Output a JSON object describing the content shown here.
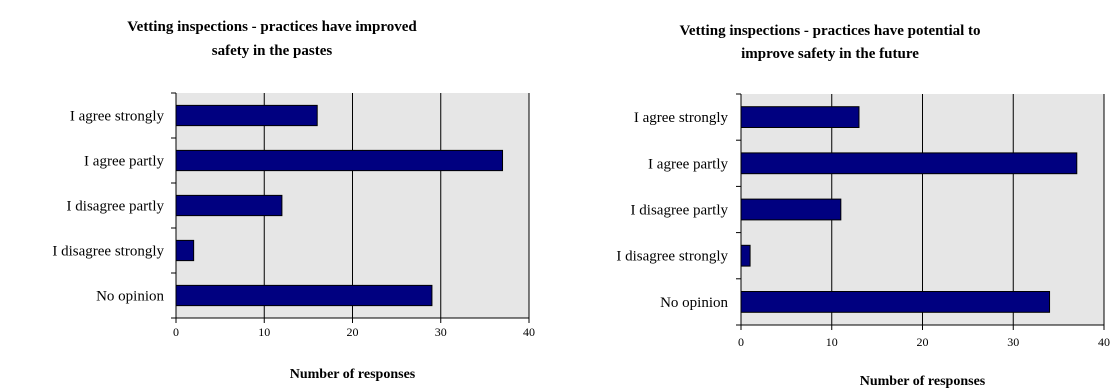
{
  "chart_data": [
    {
      "type": "bar",
      "orientation": "horizontal",
      "title_lines": [
        "Vetting inspections - practices have improved",
        "safety in the pastes"
      ],
      "categories": [
        "I agree strongly",
        "I agree partly",
        "I disagree partly",
        "I disagree strongly",
        "No opinion"
      ],
      "values": [
        16,
        37,
        12,
        2,
        29
      ],
      "xlabel": "Number of responses",
      "ylabel": "",
      "xlim": [
        0,
        40
      ],
      "xticks": [
        0,
        10,
        20,
        30,
        40
      ],
      "grid": "vertical",
      "legend": "none"
    },
    {
      "type": "bar",
      "orientation": "horizontal",
      "title_lines": [
        "Vetting inspections - practices have potential to",
        "improve safety in the future"
      ],
      "categories": [
        "I agree strongly",
        "I agree partly",
        "I disagree partly",
        "I disagree strongly",
        "No opinion"
      ],
      "values": [
        13,
        37,
        11,
        1,
        34
      ],
      "xlabel": "Number of responses",
      "ylabel": "",
      "xlim": [
        0,
        40
      ],
      "xticks": [
        0,
        10,
        20,
        30,
        40
      ],
      "grid": "vertical",
      "legend": "none"
    }
  ],
  "colors": {
    "bar_fill": "#000080",
    "bar_stroke": "#000000",
    "plot_background": "#e6e6e6",
    "gridline": "#000000",
    "axis": "#000000"
  }
}
